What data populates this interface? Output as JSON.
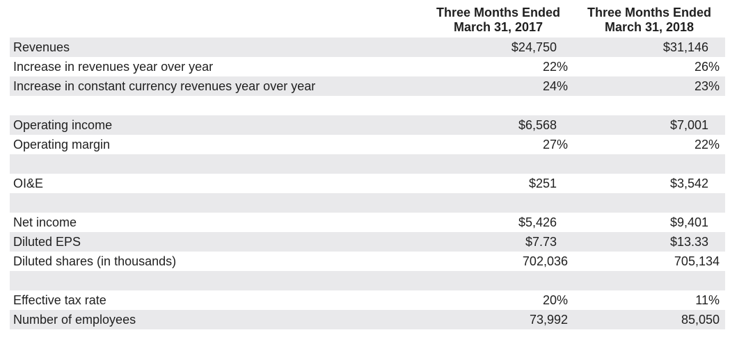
{
  "headers": {
    "col1": [
      "Three Months Ended",
      "March 31, 2017"
    ],
    "col2": [
      "Three Months Ended",
      "March 31, 2018"
    ]
  },
  "rows": [
    {
      "label": "Revenues",
      "v1": "$24,750",
      "v2": "$31,146",
      "shade": true
    },
    {
      "label": "Increase in revenues year over year",
      "v1": "22%",
      "v2": "26%",
      "shade": false
    },
    {
      "label": "Increase in constant currency revenues year over year",
      "v1": "24%",
      "v2": "23%",
      "shade": true
    },
    {
      "label": "",
      "v1": "",
      "v2": "",
      "shade": false
    },
    {
      "label": "Operating income",
      "v1": "$6,568",
      "v2": "$7,001",
      "shade": true
    },
    {
      "label": "Operating margin",
      "v1": "27%",
      "v2": "22%",
      "shade": false
    },
    {
      "label": "",
      "v1": "",
      "v2": "",
      "shade": true
    },
    {
      "label": "OI&E",
      "v1": "$251",
      "v2": "$3,542",
      "shade": false
    },
    {
      "label": "",
      "v1": "",
      "v2": "",
      "shade": true
    },
    {
      "label": "Net income",
      "v1": "$5,426",
      "v2": "$9,401",
      "shade": false
    },
    {
      "label": "Diluted EPS",
      "v1": "$7.73",
      "v2": "$13.33",
      "shade": true
    },
    {
      "label": "Diluted shares (in thousands)",
      "v1": "702,036",
      "v2": "705,134",
      "shade": false
    },
    {
      "label": "",
      "v1": "",
      "v2": "",
      "shade": true
    },
    {
      "label": "Effective tax rate",
      "v1": "20%",
      "v2": "11%",
      "shade": false
    },
    {
      "label": "Number of employees",
      "v1": "73,992",
      "v2": "85,050",
      "shade": true
    }
  ],
  "colors": {
    "shade": "#e9e9eb",
    "text": "#1f1f1f"
  }
}
